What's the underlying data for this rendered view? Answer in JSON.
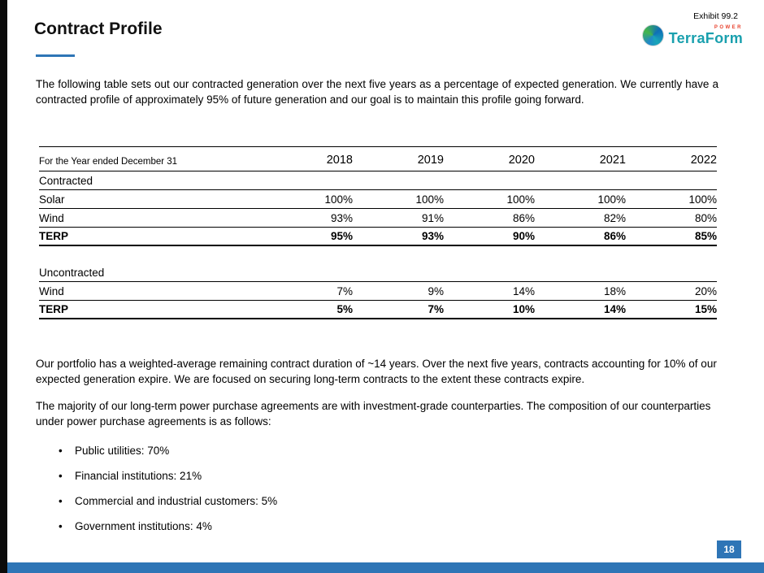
{
  "page": {
    "exhibit": "Exhibit 99.2",
    "title": "Contract Profile",
    "page_number": "18"
  },
  "logo": {
    "name": "TerraForm",
    "power": "POWER"
  },
  "colors": {
    "accent_blue": "#2e75b6",
    "logo_teal": "#19a0ae",
    "logo_red": "#e8412c",
    "left_bar_black": "#0b0b0b"
  },
  "intro": "The following table sets out our contracted generation over the next five years as a percentage of expected generation. We currently have a contracted profile of approximately 95% of future generation and our goal is to maintain this profile going forward.",
  "table": {
    "header_label": "For the Year ended December 31",
    "years": [
      "2018",
      "2019",
      "2020",
      "2021",
      "2022"
    ],
    "sections": [
      {
        "label": "Contracted",
        "rows": [
          {
            "label": "Solar",
            "values": [
              "100%",
              "100%",
              "100%",
              "100%",
              "100%"
            ]
          },
          {
            "label": "Wind",
            "values": [
              "93%",
              "91%",
              "86%",
              "82%",
              "80%"
            ]
          },
          {
            "label": "TERP",
            "values": [
              "95%",
              "93%",
              "90%",
              "86%",
              "85%"
            ]
          }
        ]
      },
      {
        "label": "Uncontracted",
        "rows": [
          {
            "label": "Wind",
            "values": [
              "7%",
              "9%",
              "14%",
              "18%",
              "20%"
            ]
          },
          {
            "label": "TERP",
            "values": [
              "5%",
              "7%",
              "10%",
              "14%",
              "15%"
            ]
          }
        ]
      }
    ]
  },
  "paragraphs": [
    "Our portfolio has a weighted-average remaining contract duration of ~14 years. Over the next five years, contracts accounting for 10% of our expected generation expire.  We are focused on securing long-term contracts to the extent these contracts expire.",
    "The majority of our long-term power purchase agreements are with investment-grade counterparties. The composition of our counterparties under power purchase agreements is as follows:"
  ],
  "bullets": [
    "Public utilities: 70%",
    "Financial institutions: 21%",
    "Commercial and industrial customers: 5%",
    "Government institutions: 4%"
  ]
}
